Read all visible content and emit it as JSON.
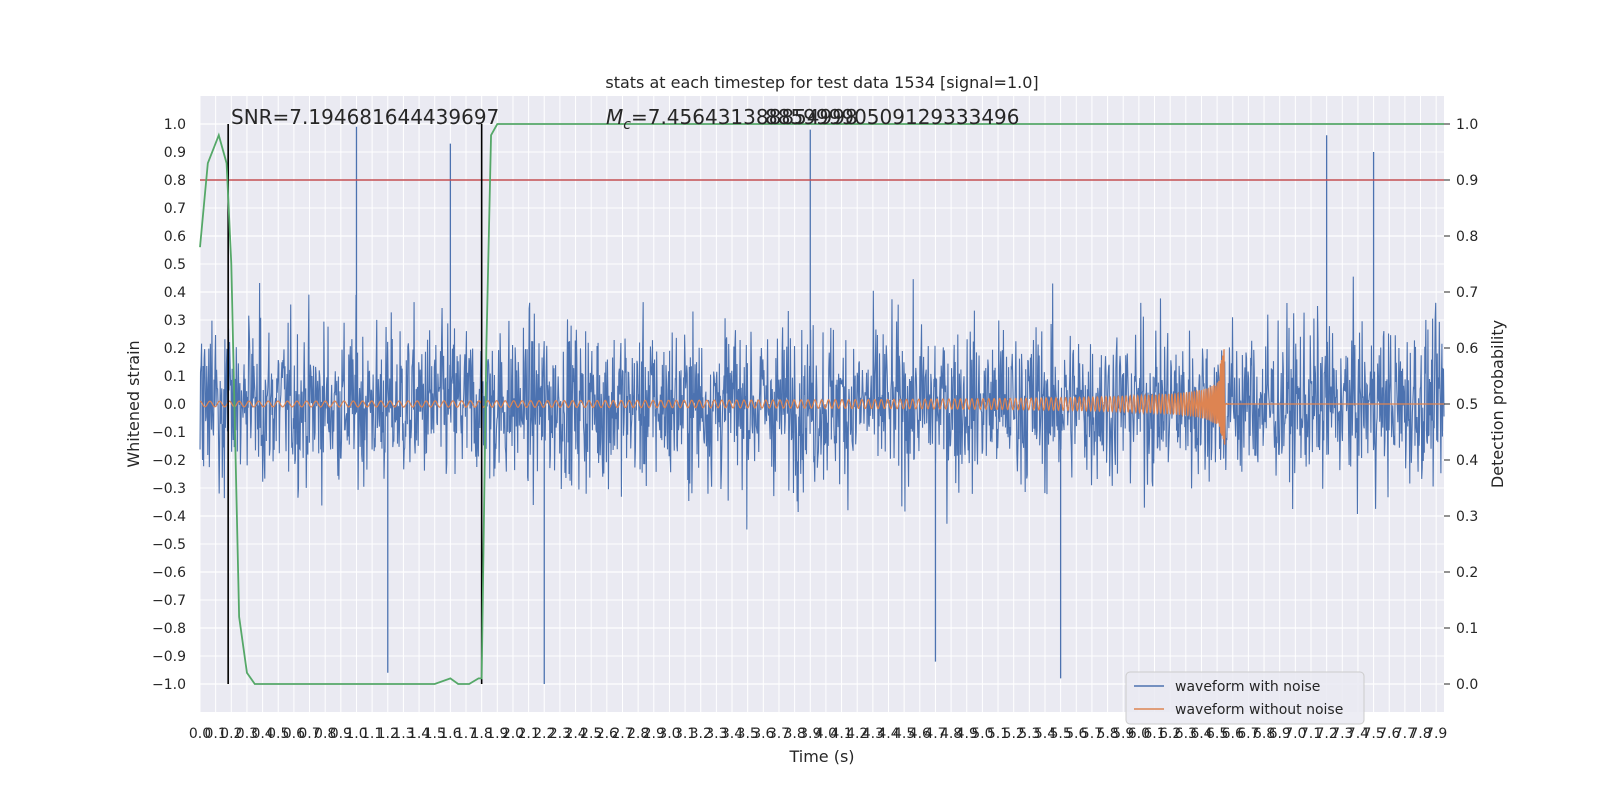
{
  "chart_data": {
    "type": "line",
    "title": "stats at each timestep for test data 1534 [signal=1.0]",
    "xlabel": "Time (s)",
    "ylabel": "Whitened strain",
    "ylabel_right": "Detection probability",
    "xlim": [
      0.0,
      7.95
    ],
    "ylim": [
      -1.1,
      1.1
    ],
    "ylim_right": [
      -0.05,
      1.05
    ],
    "x_ticks": [
      "0.0",
      "0.1",
      "0.2",
      "0.3",
      "0.4",
      "0.5",
      "0.6",
      "0.7",
      "0.8",
      "0.9",
      "1.0",
      "1.1",
      "1.2",
      "1.3",
      "1.4",
      "1.5",
      "1.6",
      "1.7",
      "1.8",
      "1.9",
      "2.0",
      "2.1",
      "2.2",
      "2.3",
      "2.4",
      "2.5",
      "2.6",
      "2.7",
      "2.8",
      "2.9",
      "3.0",
      "3.1",
      "3.2",
      "3.3",
      "3.4",
      "3.5",
      "3.6",
      "3.7",
      "3.8",
      "3.9",
      "4.0",
      "4.1",
      "4.2",
      "4.3",
      "4.4",
      "4.5",
      "4.6",
      "4.7",
      "4.8",
      "4.9",
      "5.0",
      "5.1",
      "5.2",
      "5.3",
      "5.4",
      "5.5",
      "5.6",
      "5.7",
      "5.8",
      "5.9",
      "6.0",
      "6.1",
      "6.2",
      "6.3",
      "6.4",
      "6.5",
      "6.6",
      "6.7",
      "6.8",
      "6.9",
      "7.0",
      "7.1",
      "7.2",
      "7.3",
      "7.4",
      "7.5",
      "7.6",
      "7.7",
      "7.8",
      "7.9"
    ],
    "y_ticks": [
      "1.0",
      "0.9",
      "0.8",
      "0.7",
      "0.6",
      "0.5",
      "0.4",
      "0.3",
      "0.2",
      "0.1",
      "0.0",
      "−0.1",
      "−0.2",
      "−0.3",
      "−0.4",
      "−0.5",
      "−0.6",
      "−0.7",
      "−0.8",
      "−0.9",
      "−1.0"
    ],
    "y_ticks_right": [
      "1.0",
      "0.9",
      "0.8",
      "0.7",
      "0.6",
      "0.5",
      "0.4",
      "0.3",
      "0.2",
      "0.1",
      "0.0"
    ],
    "annotations": {
      "snr": "SNR=7.194681644439697",
      "mc_prefix": "M",
      "mc_sub": "c",
      "mc_value": "=7.456431388854998",
      "mc_overlap": "88599990509129333496"
    },
    "vertical_lines_x": [
      0.18,
      1.8
    ],
    "threshold_right": 0.9,
    "grid": true,
    "legend_position": "lower-right",
    "series": [
      {
        "name": "waveform with noise",
        "color": "#4c72b0",
        "kind": "noise",
        "envelope": "approximately ±0.5 with peaks near ±1.0",
        "notable_peaks": [
          {
            "x": 1.0,
            "y": 0.99
          },
          {
            "x": 3.9,
            "y": 0.98
          },
          {
            "x": 7.2,
            "y": 0.96
          },
          {
            "x": 7.5,
            "y": 0.9
          },
          {
            "x": 1.6,
            "y": 0.93
          },
          {
            "x": 2.2,
            "y": -1.0
          },
          {
            "x": 5.5,
            "y": -0.98
          },
          {
            "x": 1.2,
            "y": -0.96
          },
          {
            "x": 4.7,
            "y": -0.92
          }
        ]
      },
      {
        "name": "waveform without noise",
        "color": "#dd8452",
        "kind": "chirp",
        "start_amplitude": 0.01,
        "merger_x": 6.55,
        "merger_peak_y": 0.27,
        "merger_trough_y": -0.17
      },
      {
        "name": "",
        "color": "#55a868",
        "axis": "right",
        "x": [
          0.0,
          0.05,
          0.12,
          0.17,
          0.2,
          0.25,
          0.3,
          0.35,
          0.4,
          0.6,
          0.8,
          1.0,
          1.2,
          1.4,
          1.5,
          1.6,
          1.65,
          1.72,
          1.78,
          1.8,
          1.83,
          1.86,
          1.9,
          2.0,
          3.0,
          4.0,
          5.0,
          6.0,
          7.0,
          7.95
        ],
        "y": [
          0.78,
          0.93,
          0.98,
          0.93,
          0.75,
          0.12,
          0.02,
          0.0,
          0.0,
          0.0,
          0.0,
          0.0,
          0.0,
          0.0,
          0.0,
          0.01,
          0.0,
          0.0,
          0.01,
          0.01,
          0.6,
          0.98,
          1.0,
          1.0,
          1.0,
          1.0,
          1.0,
          1.0,
          1.0,
          1.0
        ]
      }
    ],
    "colors": {
      "plot_bg": "#eaeaf2",
      "grid": "#ffffff",
      "threshold": "#c44e52",
      "vline": "#000000"
    }
  }
}
